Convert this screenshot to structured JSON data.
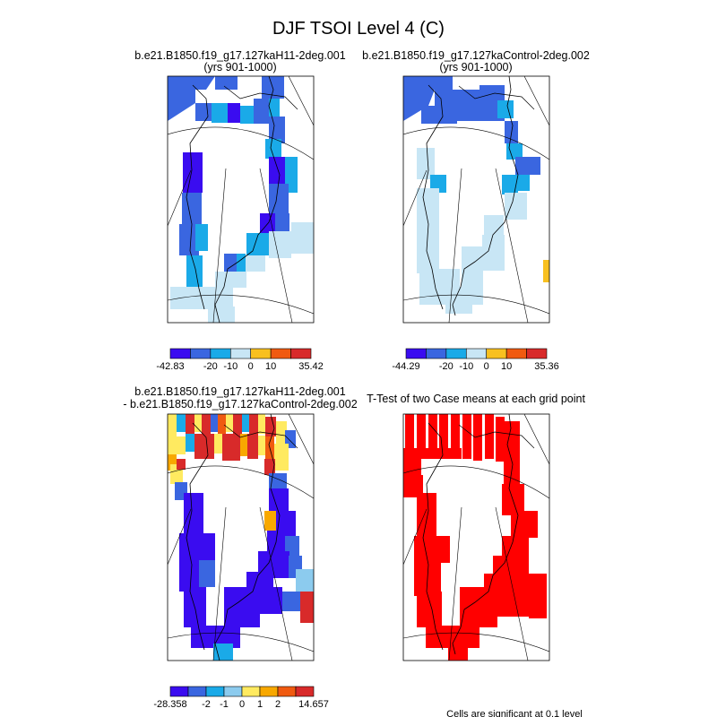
{
  "title": "DJF TSOI Level 4 (C)",
  "footnote": "Cells are significant at 0.1 level",
  "colors": {
    "deep_blue": "#3a0cf0",
    "blue": "#3a66e0",
    "cyan": "#1aaae8",
    "light_blue": "#8ccbee",
    "pale_blue": "#c8e6f5",
    "yellow": "#ffea60",
    "orange": "#f8a800",
    "red_orange": "#f05a10",
    "red": "#d82a2a",
    "sig_red": "#ff0000",
    "coast": "#000000"
  },
  "chart_data": [
    {
      "type": "heatmap",
      "panel": "top-left",
      "title_line1": "b.e21.B1850.f19_g17.127kaH11-2deg.001",
      "title_line2": "(yrs 901-1000)",
      "colorbar": {
        "labels": [
          "-42.83",
          "-20",
          "-10",
          "0",
          "10",
          "35.42"
        ],
        "colors": [
          "#3a0cf0",
          "#3a66e0",
          "#1aaae8",
          "#c8e6f5",
          "#f8c020",
          "#f05a10",
          "#d82a2a"
        ]
      }
    },
    {
      "type": "heatmap",
      "panel": "top-right",
      "title_line1": "b.e21.B1850.f19_g17.127kaControl-2deg.002",
      "title_line2": "(yrs 901-1000)",
      "colorbar": {
        "labels": [
          "-44.29",
          "-20",
          "-10",
          "0",
          "10",
          "35.36"
        ],
        "colors": [
          "#3a0cf0",
          "#3a66e0",
          "#1aaae8",
          "#c8e6f5",
          "#f8c020",
          "#f05a10",
          "#d82a2a"
        ]
      }
    },
    {
      "type": "heatmap",
      "panel": "bottom-left",
      "title_line1": "b.e21.B1850.f19_g17.127kaH11-2deg.001",
      "title_line2": "- b.e21.B1850.f19_g17.127kaControl-2deg.002",
      "colorbar": {
        "labels": [
          "-28.358",
          "-2",
          "-1",
          "0",
          "1",
          "2",
          "14.657"
        ],
        "colors": [
          "#3a0cf0",
          "#3a66e0",
          "#1aaae8",
          "#8ccbee",
          "#ffea60",
          "#f8a800",
          "#f05a10",
          "#d82a2a"
        ]
      }
    },
    {
      "type": "heatmap",
      "panel": "bottom-right",
      "title_line1": "T-Test of two Case means at each grid point",
      "title_line2": ""
    }
  ]
}
